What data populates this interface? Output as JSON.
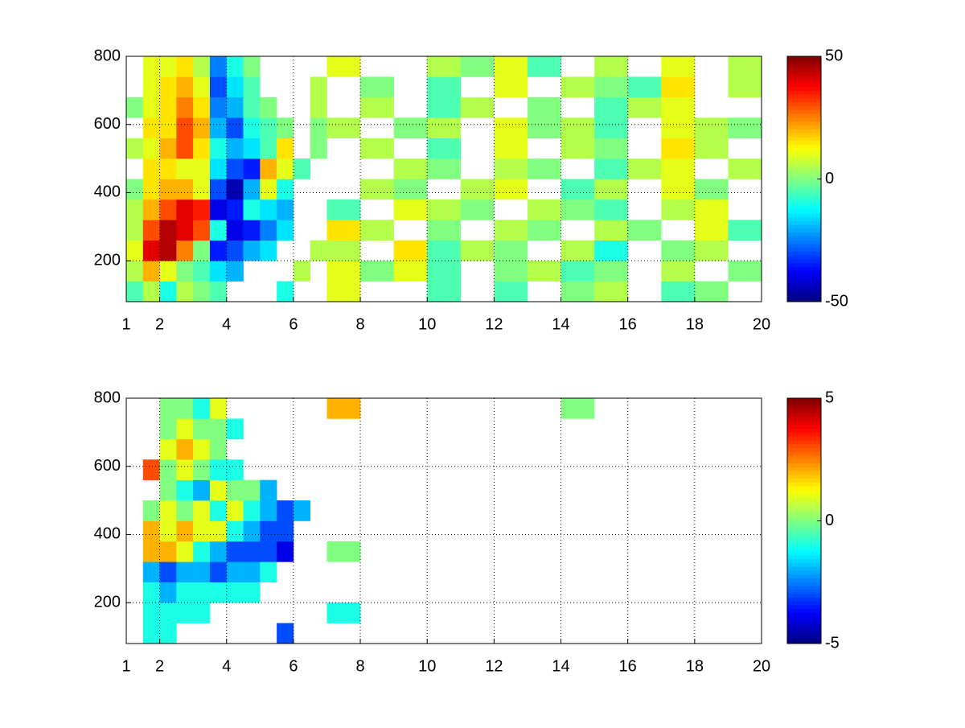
{
  "chart_data": [
    {
      "type": "heatmap",
      "colormap": "jet",
      "grid": true,
      "xlim": [
        1,
        20
      ],
      "ylim": [
        80,
        800
      ],
      "xticks": [
        1,
        2,
        4,
        6,
        8,
        10,
        12,
        14,
        16,
        18,
        20
      ],
      "yticks": [
        200,
        400,
        600,
        800
      ],
      "clim": [
        -50,
        50
      ],
      "colorbar_ticks": [
        -50,
        0,
        50
      ],
      "x_edges": [
        1,
        1.5,
        2,
        2.5,
        3,
        3.5,
        4,
        4.5,
        5,
        5.5,
        6,
        6.5,
        7,
        8,
        9,
        10,
        11,
        12,
        13,
        14,
        15,
        16,
        17,
        18,
        19,
        20
      ],
      "y_edges": [
        80,
        140,
        200,
        260,
        320,
        380,
        440,
        500,
        560,
        620,
        680,
        740,
        800
      ],
      "values": [
        [
          -5,
          5,
          -10,
          5,
          0,
          -5,
          null,
          null,
          null,
          -10,
          null,
          null,
          10,
          null,
          null,
          -5,
          null,
          -5,
          null,
          0,
          5,
          null,
          -5,
          0,
          null
        ],
        [
          5,
          20,
          10,
          0,
          -5,
          -15,
          -20,
          null,
          null,
          null,
          5,
          null,
          10,
          0,
          10,
          -5,
          null,
          0,
          5,
          -5,
          0,
          null,
          5,
          null,
          0
        ],
        [
          10,
          40,
          45,
          25,
          0,
          -35,
          -30,
          -20,
          -15,
          null,
          null,
          5,
          5,
          null,
          15,
          -5,
          5,
          0,
          null,
          5,
          -10,
          null,
          0,
          5,
          null
        ],
        [
          5,
          30,
          45,
          40,
          30,
          -10,
          -40,
          -35,
          -25,
          -15,
          null,
          null,
          15,
          5,
          null,
          0,
          null,
          5,
          0,
          null,
          5,
          0,
          null,
          10,
          -5
        ],
        [
          5,
          20,
          30,
          40,
          35,
          -40,
          -35,
          -10,
          -15,
          -20,
          null,
          null,
          -5,
          null,
          10,
          5,
          0,
          null,
          5,
          0,
          -5,
          null,
          5,
          10,
          null
        ],
        [
          0,
          15,
          20,
          20,
          10,
          -30,
          -45,
          -20,
          10,
          -10,
          null,
          null,
          null,
          5,
          0,
          null,
          5,
          10,
          null,
          -5,
          5,
          null,
          10,
          0,
          null
        ],
        [
          null,
          15,
          15,
          10,
          10,
          -15,
          -30,
          -35,
          20,
          10,
          -5,
          null,
          null,
          null,
          5,
          0,
          null,
          5,
          0,
          null,
          -5,
          5,
          10,
          null,
          5
        ],
        [
          5,
          10,
          20,
          30,
          15,
          -10,
          -20,
          -15,
          -5,
          15,
          null,
          0,
          null,
          5,
          null,
          -5,
          null,
          10,
          null,
          5,
          0,
          null,
          15,
          5,
          null
        ],
        [
          null,
          15,
          15,
          30,
          20,
          -20,
          -30,
          -10,
          -5,
          0,
          null,
          0,
          5,
          null,
          0,
          5,
          null,
          10,
          0,
          5,
          -5,
          null,
          10,
          5,
          0
        ],
        [
          0,
          10,
          15,
          25,
          15,
          -25,
          -20,
          -5,
          0,
          null,
          null,
          5,
          null,
          5,
          null,
          -5,
          5,
          null,
          0,
          null,
          -5,
          5,
          10,
          null,
          null
        ],
        [
          null,
          10,
          15,
          20,
          10,
          -30,
          -15,
          -5,
          null,
          null,
          null,
          5,
          null,
          0,
          null,
          -5,
          null,
          10,
          null,
          5,
          0,
          -5,
          15,
          null,
          5
        ],
        [
          null,
          10,
          10,
          15,
          5,
          -25,
          -10,
          0,
          null,
          null,
          null,
          null,
          10,
          null,
          null,
          5,
          0,
          10,
          -5,
          null,
          5,
          null,
          10,
          null,
          5
        ]
      ]
    },
    {
      "type": "heatmap",
      "colormap": "jet",
      "grid": true,
      "xlim": [
        1,
        20
      ],
      "ylim": [
        80,
        800
      ],
      "xticks": [
        1,
        2,
        4,
        6,
        8,
        10,
        12,
        14,
        16,
        18,
        20
      ],
      "yticks": [
        200,
        400,
        600,
        800
      ],
      "clim": [
        -5,
        5
      ],
      "colorbar_ticks": [
        -5,
        0,
        5
      ],
      "x_edges": [
        1,
        1.5,
        2,
        2.5,
        3,
        3.5,
        4,
        4.5,
        5,
        5.5,
        6,
        6.5,
        7,
        8,
        9,
        10,
        11,
        12,
        13,
        14,
        15,
        16,
        17,
        18,
        19,
        20
      ],
      "y_edges": [
        80,
        140,
        200,
        260,
        320,
        380,
        440,
        500,
        560,
        620,
        680,
        740,
        800
      ],
      "values": [
        [
          null,
          -1,
          -1,
          null,
          null,
          null,
          null,
          null,
          null,
          -3,
          null,
          null,
          null,
          null,
          null,
          null,
          null,
          null,
          null,
          null,
          null,
          null,
          null,
          null,
          null
        ],
        [
          null,
          -1,
          -1,
          -1,
          -1,
          null,
          null,
          null,
          null,
          null,
          null,
          null,
          -1,
          null,
          null,
          null,
          null,
          null,
          null,
          null,
          null,
          null,
          null,
          null,
          null
        ],
        [
          null,
          -1,
          -2,
          -1,
          -1,
          -1,
          -1,
          -1,
          null,
          null,
          null,
          null,
          null,
          null,
          null,
          null,
          null,
          null,
          null,
          null,
          null,
          null,
          null,
          null,
          null
        ],
        [
          null,
          -2,
          -3,
          -2,
          -2,
          -3,
          -2,
          -2,
          -1,
          null,
          null,
          null,
          null,
          null,
          null,
          null,
          null,
          null,
          null,
          null,
          null,
          null,
          null,
          null,
          null
        ],
        [
          null,
          2,
          2,
          1,
          -1,
          -2,
          -3,
          -3,
          -3,
          -4,
          null,
          null,
          0,
          null,
          null,
          null,
          null,
          null,
          null,
          null,
          null,
          null,
          null,
          null,
          null
        ],
        [
          null,
          2,
          1,
          2,
          1,
          1,
          -1,
          -2,
          -3,
          -3,
          null,
          null,
          null,
          null,
          null,
          null,
          null,
          null,
          null,
          null,
          null,
          null,
          null,
          null,
          null
        ],
        [
          null,
          0,
          1,
          0,
          1,
          -1,
          1,
          -1,
          -2,
          -3,
          -2,
          null,
          null,
          null,
          null,
          null,
          null,
          null,
          null,
          null,
          null,
          null,
          null,
          null,
          null
        ],
        [
          null,
          null,
          0,
          -1,
          -2,
          1,
          0,
          0,
          -2,
          null,
          null,
          null,
          null,
          null,
          null,
          null,
          null,
          null,
          null,
          null,
          null,
          null,
          null,
          null,
          null
        ],
        [
          null,
          3,
          0,
          1,
          0,
          -1,
          -1,
          null,
          null,
          null,
          null,
          null,
          null,
          null,
          null,
          null,
          null,
          null,
          null,
          null,
          null,
          null,
          null,
          null,
          null
        ],
        [
          null,
          null,
          1,
          2,
          1,
          0,
          null,
          null,
          null,
          null,
          null,
          null,
          null,
          null,
          null,
          null,
          null,
          null,
          null,
          null,
          null,
          null,
          null,
          null,
          null
        ],
        [
          null,
          null,
          0,
          1,
          0,
          0,
          -1,
          null,
          null,
          null,
          null,
          null,
          null,
          null,
          null,
          null,
          null,
          null,
          null,
          null,
          null,
          null,
          null,
          null,
          null
        ],
        [
          null,
          null,
          0,
          0,
          -1,
          1,
          null,
          null,
          null,
          null,
          null,
          null,
          2,
          null,
          null,
          null,
          null,
          null,
          null,
          0,
          null,
          null,
          null,
          null,
          null
        ]
      ]
    }
  ]
}
